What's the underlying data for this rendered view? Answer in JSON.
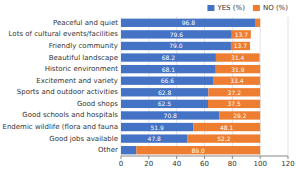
{
  "chart_data": {
    "type": "bar",
    "orientation": "horizontal",
    "stacked": true,
    "categories": [
      "Peaceful and quiet",
      "Lots of cultural events/facilities",
      "Friendly community",
      "Beautiful landscape",
      "Historic environment",
      "Excitement and variety",
      "Sports and outdoor activities",
      "Good shops",
      "Good schools and hospitals",
      "Endemic wildlife (flora and fauna",
      "Good jobs available",
      "Other"
    ],
    "series": [
      {
        "name": "YES (%)",
        "color": "#4472c4",
        "values": [
          96.8,
          79.6,
          79.0,
          68.2,
          68.1,
          66.6,
          62.8,
          62.5,
          70.8,
          51.9,
          47.8,
          11.0
        ],
        "value_labels": [
          "96.8",
          "79.6",
          "79.0",
          "68.2",
          "68.1",
          "66.6",
          "62.8",
          "62.5",
          "70.8",
          "51.9",
          "47.8",
          null
        ]
      },
      {
        "name": "NO (%)",
        "color": "#ed7d31",
        "values": [
          3.2,
          13.7,
          13.7,
          31.4,
          31.9,
          33.4,
          37.2,
          37.5,
          29.2,
          48.1,
          52.2,
          89.0
        ],
        "value_labels": [
          null,
          "13.7",
          "13.7",
          "31.4",
          "31.9",
          "33.4",
          "37.2",
          "37.5",
          "29.2",
          "48.1",
          "52.2",
          "89.0"
        ]
      }
    ],
    "xlim": [
      0,
      120
    ],
    "xticks": [
      0,
      20,
      40,
      60,
      80,
      100,
      120
    ],
    "grid": true,
    "legend": "upper right",
    "data_labels": true
  }
}
